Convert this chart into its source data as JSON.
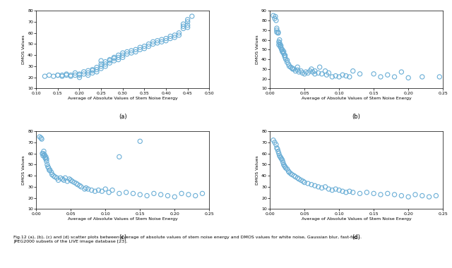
{
  "fig_title": "Fig.12 (a), (b), (c) and (d) scatter plots between average of absolute values of stem noise energy and DMOS values for white noise, Gaussian blur, fast-fading,\nJPEG2000 subsets of the LIVE image database [23].",
  "marker_color": "#6aaed6",
  "marker_size": 20,
  "marker_style": "o",
  "marker_facecolor": "none",
  "marker_linewidth": 0.8,
  "subplots": [
    {
      "label": "(a)",
      "xlabel": "Average of Absolute Values of Stem Noise Energy",
      "ylabel": "DMOS Values",
      "xlim": [
        0.1,
        0.5
      ],
      "ylim": [
        10,
        80
      ],
      "xticks": [
        0.1,
        0.15,
        0.2,
        0.25,
        0.3,
        0.35,
        0.4,
        0.45,
        0.5
      ],
      "yticks": [
        10,
        20,
        30,
        40,
        50,
        60,
        70,
        80
      ],
      "x": [
        0.12,
        0.13,
        0.14,
        0.15,
        0.15,
        0.16,
        0.16,
        0.17,
        0.17,
        0.18,
        0.18,
        0.19,
        0.19,
        0.2,
        0.2,
        0.2,
        0.21,
        0.21,
        0.22,
        0.22,
        0.22,
        0.23,
        0.23,
        0.23,
        0.24,
        0.24,
        0.24,
        0.25,
        0.25,
        0.25,
        0.25,
        0.26,
        0.26,
        0.26,
        0.27,
        0.27,
        0.27,
        0.28,
        0.28,
        0.28,
        0.29,
        0.29,
        0.29,
        0.3,
        0.3,
        0.3,
        0.31,
        0.31,
        0.32,
        0.32,
        0.33,
        0.33,
        0.34,
        0.34,
        0.35,
        0.35,
        0.36,
        0.36,
        0.37,
        0.37,
        0.38,
        0.38,
        0.39,
        0.39,
        0.4,
        0.4,
        0.41,
        0.41,
        0.42,
        0.42,
        0.43,
        0.43,
        0.44,
        0.44,
        0.44,
        0.45,
        0.45,
        0.45,
        0.45,
        0.46
      ],
      "y": [
        21,
        22,
        21,
        22,
        22,
        21,
        22,
        22,
        23,
        21,
        22,
        22,
        24,
        20,
        22,
        23,
        23,
        25,
        22,
        24,
        26,
        24,
        26,
        27,
        25,
        27,
        29,
        28,
        30,
        32,
        35,
        30,
        32,
        34,
        33,
        35,
        36,
        35,
        37,
        38,
        36,
        38,
        40,
        38,
        40,
        42,
        41,
        43,
        42,
        44,
        43,
        45,
        45,
        47,
        46,
        48,
        48,
        50,
        50,
        52,
        51,
        53,
        52,
        54,
        53,
        55,
        55,
        57,
        56,
        58,
        58,
        60,
        64,
        66,
        68,
        65,
        67,
        70,
        72,
        75
      ]
    },
    {
      "label": "(b)",
      "xlabel": "Average of Absolute Values of Stem Noise Energy",
      "ylabel": "DMOS Values",
      "xlim": [
        0,
        0.25
      ],
      "ylim": [
        10,
        90
      ],
      "xticks": [
        0,
        0.05,
        0.1,
        0.15,
        0.2,
        0.25
      ],
      "yticks": [
        10,
        20,
        30,
        40,
        50,
        60,
        70,
        80,
        90
      ],
      "x": [
        0.005,
        0.007,
        0.008,
        0.009,
        0.01,
        0.01,
        0.01,
        0.012,
        0.012,
        0.013,
        0.013,
        0.014,
        0.014,
        0.015,
        0.015,
        0.016,
        0.016,
        0.017,
        0.018,
        0.018,
        0.019,
        0.02,
        0.02,
        0.021,
        0.022,
        0.022,
        0.023,
        0.025,
        0.025,
        0.027,
        0.028,
        0.03,
        0.032,
        0.033,
        0.035,
        0.037,
        0.04,
        0.04,
        0.042,
        0.045,
        0.047,
        0.05,
        0.052,
        0.055,
        0.058,
        0.06,
        0.062,
        0.065,
        0.065,
        0.07,
        0.072,
        0.075,
        0.08,
        0.082,
        0.085,
        0.09,
        0.095,
        0.1,
        0.105,
        0.11,
        0.115,
        0.12,
        0.13,
        0.15,
        0.16,
        0.17,
        0.18,
        0.19,
        0.2,
        0.22,
        0.245
      ],
      "y": [
        85,
        82,
        84,
        80,
        68,
        70,
        72,
        67,
        68,
        55,
        58,
        57,
        60,
        53,
        55,
        52,
        54,
        50,
        48,
        50,
        47,
        46,
        48,
        44,
        42,
        44,
        40,
        37,
        39,
        35,
        33,
        32,
        31,
        30,
        30,
        28,
        29,
        32,
        27,
        28,
        26,
        25,
        27,
        26,
        28,
        30,
        27,
        25,
        28,
        26,
        32,
        25,
        28,
        24,
        26,
        22,
        23,
        22,
        24,
        23,
        22,
        28,
        25,
        25,
        22,
        24,
        22,
        27,
        21,
        22,
        22
      ]
    },
    {
      "label": "(c)",
      "xlabel": "Average of Absolute Values of Stem Noise Energy",
      "ylabel": "DMOS Values",
      "xlim": [
        0,
        0.25
      ],
      "ylim": [
        10,
        80
      ],
      "xticks": [
        0,
        0.05,
        0.1,
        0.15,
        0.2,
        0.25
      ],
      "yticks": [
        10,
        20,
        30,
        40,
        50,
        60,
        70,
        80
      ],
      "x": [
        0.005,
        0.007,
        0.008,
        0.009,
        0.01,
        0.01,
        0.011,
        0.012,
        0.012,
        0.013,
        0.014,
        0.014,
        0.015,
        0.015,
        0.016,
        0.017,
        0.018,
        0.019,
        0.02,
        0.022,
        0.023,
        0.025,
        0.027,
        0.03,
        0.032,
        0.035,
        0.038,
        0.04,
        0.042,
        0.045,
        0.048,
        0.05,
        0.052,
        0.055,
        0.058,
        0.06,
        0.063,
        0.065,
        0.07,
        0.072,
        0.075,
        0.08,
        0.085,
        0.09,
        0.095,
        0.1,
        0.105,
        0.11,
        0.12,
        0.13,
        0.14,
        0.15,
        0.16,
        0.17,
        0.18,
        0.19,
        0.2,
        0.21,
        0.22,
        0.23,
        0.24,
        0.15,
        0.12
      ],
      "y": [
        75,
        74,
        73,
        60,
        58,
        60,
        62,
        59,
        58,
        56,
        55,
        57,
        53,
        55,
        50,
        48,
        47,
        45,
        45,
        43,
        41,
        40,
        39,
        38,
        36,
        38,
        37,
        36,
        38,
        35,
        37,
        36,
        35,
        34,
        33,
        32,
        31,
        30,
        28,
        29,
        28,
        27,
        26,
        27,
        26,
        28,
        25,
        27,
        24,
        25,
        24,
        23,
        22,
        24,
        23,
        22,
        21,
        24,
        23,
        22,
        24,
        71,
        57
      ]
    },
    {
      "label": "(d)",
      "xlabel": "Average of Absolute Values of Stem Noise Energy",
      "ylabel": "DMOS Values",
      "xlim": [
        0,
        0.25
      ],
      "ylim": [
        10,
        80
      ],
      "xticks": [
        0,
        0.05,
        0.1,
        0.15,
        0.2,
        0.25
      ],
      "yticks": [
        10,
        20,
        30,
        40,
        50,
        60,
        70,
        80
      ],
      "x": [
        0.005,
        0.007,
        0.009,
        0.01,
        0.011,
        0.012,
        0.013,
        0.014,
        0.015,
        0.016,
        0.017,
        0.018,
        0.019,
        0.02,
        0.021,
        0.022,
        0.023,
        0.025,
        0.027,
        0.028,
        0.03,
        0.032,
        0.035,
        0.037,
        0.04,
        0.042,
        0.045,
        0.048,
        0.05,
        0.055,
        0.06,
        0.065,
        0.07,
        0.075,
        0.08,
        0.085,
        0.09,
        0.095,
        0.1,
        0.105,
        0.11,
        0.115,
        0.12,
        0.13,
        0.14,
        0.15,
        0.16,
        0.17,
        0.18,
        0.19,
        0.2,
        0.21,
        0.22,
        0.23,
        0.24
      ],
      "y": [
        72,
        70,
        68,
        65,
        64,
        62,
        60,
        58,
        57,
        56,
        55,
        54,
        52,
        50,
        49,
        48,
        47,
        46,
        44,
        43,
        42,
        41,
        40,
        39,
        38,
        37,
        36,
        35,
        34,
        33,
        32,
        31,
        30,
        29,
        30,
        28,
        27,
        28,
        27,
        26,
        25,
        26,
        25,
        24,
        25,
        24,
        23,
        24,
        23,
        22,
        21,
        23,
        22,
        21,
        22
      ]
    }
  ]
}
